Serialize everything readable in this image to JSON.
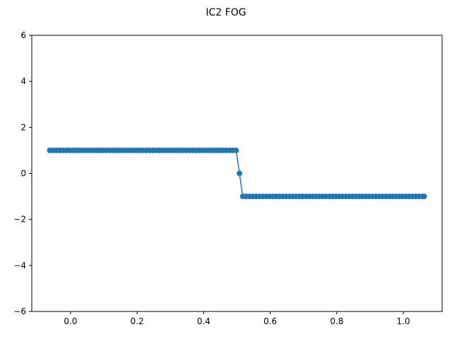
{
  "chart_data": {
    "type": "line",
    "title": "IC2 FOG",
    "xlabel": "",
    "ylabel": "",
    "xlim": [
      -0.1165,
      1.1165
    ],
    "ylim": [
      -6,
      6
    ],
    "xticks": [
      0.0,
      0.2,
      0.4,
      0.6,
      0.8,
      1.0
    ],
    "xtick_labels": [
      "0.0",
      "0.2",
      "0.4",
      "0.6",
      "0.8",
      "1.0"
    ],
    "yticks": [
      -6,
      -4,
      -2,
      0,
      2,
      4,
      6
    ],
    "ytick_labels": [
      "−6",
      "−4",
      "−2",
      "0",
      "2",
      "4",
      "6"
    ],
    "grid": false,
    "series": [
      {
        "color": "#1f77b4",
        "marker": "circle",
        "x": [
          -0.0625,
          -0.0525,
          -0.0425,
          -0.0325,
          -0.0225,
          -0.0125,
          -0.0025,
          0.0075,
          0.0175,
          0.0275,
          0.0375,
          0.0475,
          0.0575,
          0.0675,
          0.0775,
          0.0875,
          0.0975,
          0.1075,
          0.1175,
          0.1275,
          0.1375,
          0.1475,
          0.1575,
          0.1675,
          0.1775,
          0.1875,
          0.1975,
          0.2075,
          0.2175,
          0.2275,
          0.2375,
          0.2475,
          0.2575,
          0.2675,
          0.2775,
          0.2875,
          0.2975,
          0.3075,
          0.3175,
          0.3275,
          0.3375,
          0.3475,
          0.3575,
          0.3675,
          0.3775,
          0.3875,
          0.3975,
          0.4075,
          0.4175,
          0.4275,
          0.4375,
          0.4475,
          0.4575,
          0.4675,
          0.4775,
          0.4875,
          0.4975,
          0.5075,
          0.5175,
          0.5275,
          0.5375,
          0.5475,
          0.5575,
          0.5675,
          0.5775,
          0.5875,
          0.5975,
          0.6075,
          0.6175,
          0.6275,
          0.6375,
          0.6475,
          0.6575,
          0.6675,
          0.6775,
          0.6875,
          0.6975,
          0.7075,
          0.7175,
          0.7275,
          0.7375,
          0.7475,
          0.7575,
          0.7675,
          0.7775,
          0.7875,
          0.7975,
          0.8075,
          0.8175,
          0.8275,
          0.8375,
          0.8475,
          0.8575,
          0.8675,
          0.8775,
          0.8875,
          0.8975,
          0.9075,
          0.9175,
          0.9275,
          0.9375,
          0.9475,
          0.9575,
          0.9675,
          0.9775,
          0.9875,
          0.9975,
          1.0075,
          1.0175,
          1.0275,
          1.0375,
          1.0475,
          1.0575,
          1.0625
        ],
        "y": [
          1,
          1,
          1,
          1,
          1,
          1,
          1,
          1,
          1,
          1,
          1,
          1,
          1,
          1,
          1,
          1,
          1,
          1,
          1,
          1,
          1,
          1,
          1,
          1,
          1,
          1,
          1,
          1,
          1,
          1,
          1,
          1,
          1,
          1,
          1,
          1,
          1,
          1,
          1,
          1,
          1,
          1,
          1,
          1,
          1,
          1,
          1,
          1,
          1,
          1,
          1,
          1,
          1,
          1,
          1,
          1,
          1,
          0,
          -1,
          -1,
          -1,
          -1,
          -1,
          -1,
          -1,
          -1,
          -1,
          -1,
          -1,
          -1,
          -1,
          -1,
          -1,
          -1,
          -1,
          -1,
          -1,
          -1,
          -1,
          -1,
          -1,
          -1,
          -1,
          -1,
          -1,
          -1,
          -1,
          -1,
          -1,
          -1,
          -1,
          -1,
          -1,
          -1,
          -1,
          -1,
          -1,
          -1,
          -1,
          -1,
          -1,
          -1,
          -1,
          -1,
          -1,
          -1,
          -1,
          -1,
          -1,
          -1,
          -1,
          -1,
          -1,
          -1
        ]
      }
    ]
  }
}
